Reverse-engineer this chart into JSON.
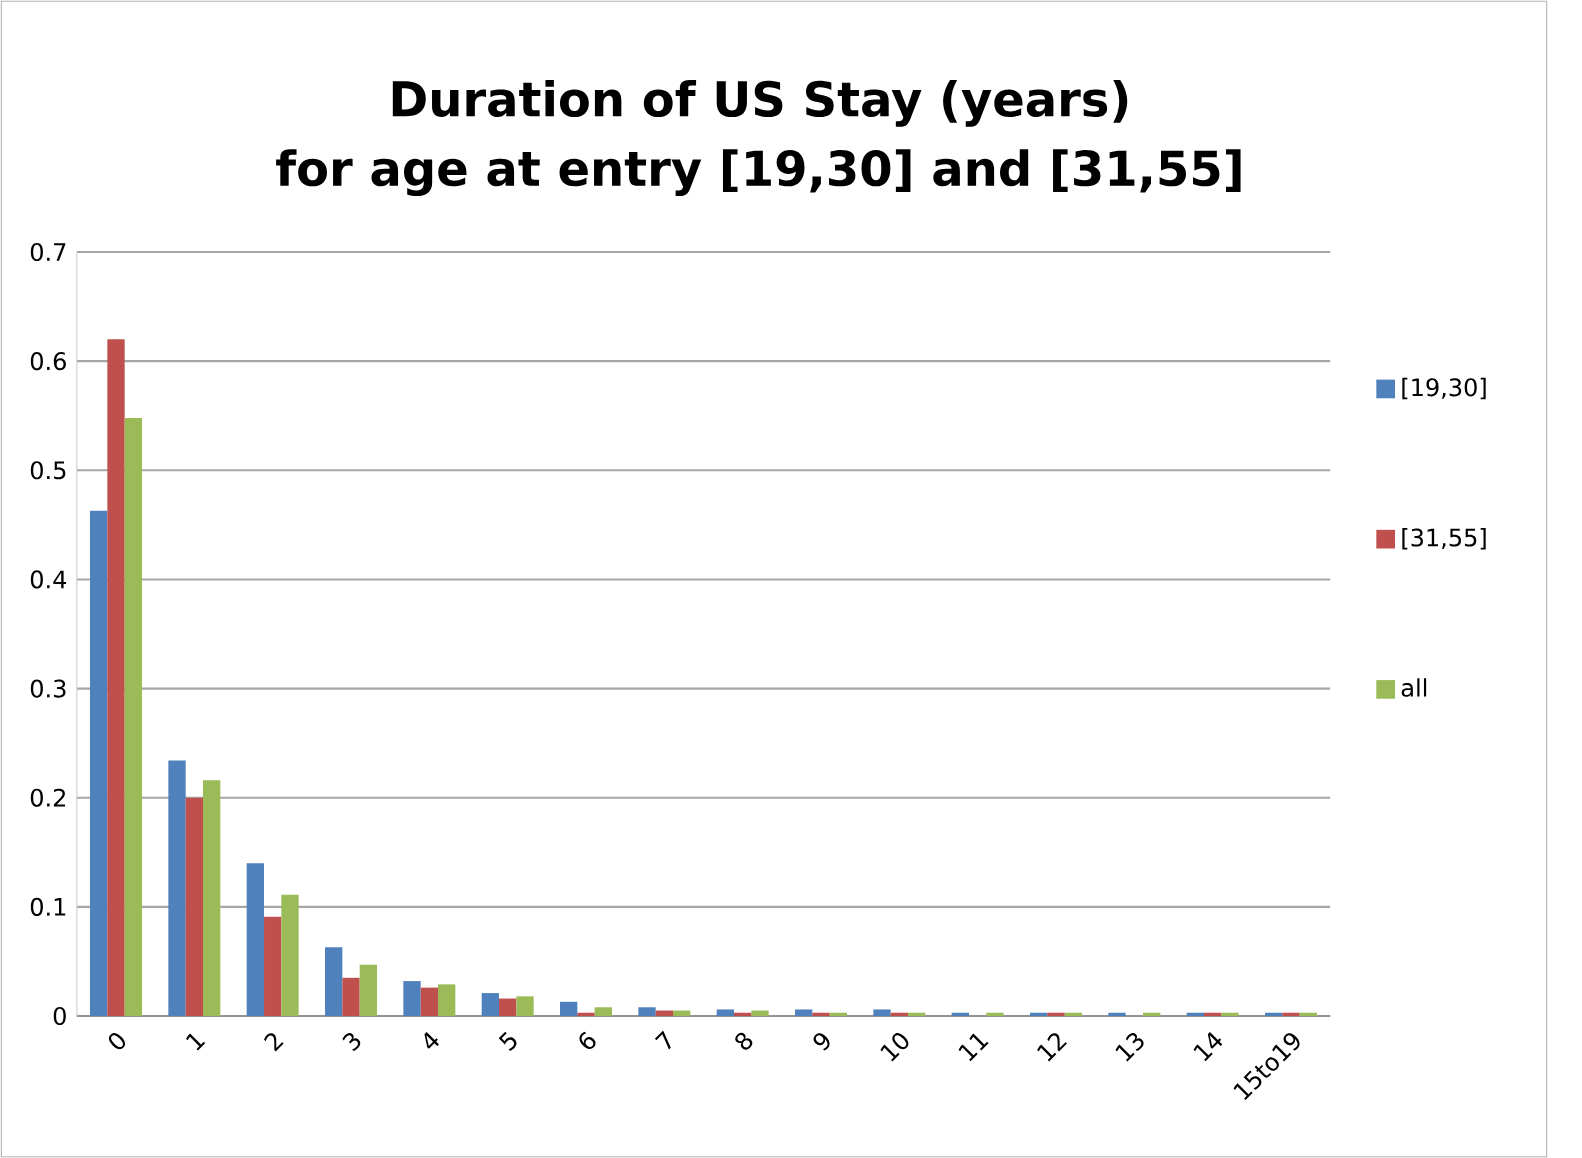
{
  "chart_data": {
    "type": "bar",
    "title": "Duration of US Stay (years)\nfor age at entry [19,30] and [31,55]",
    "categories": [
      "0",
      "1",
      "2",
      "3",
      "4",
      "5",
      "6",
      "7",
      "8",
      "9",
      "10",
      "11",
      "12",
      "13",
      "14",
      "15to19"
    ],
    "series": [
      {
        "name": "[19,30]",
        "color": "#4f81bd",
        "values": [
          0.463,
          0.234,
          0.14,
          0.063,
          0.032,
          0.021,
          0.013,
          0.008,
          0.006,
          0.006,
          0.006,
          0.003,
          0.003,
          0.003,
          0.003,
          0.003
        ]
      },
      {
        "name": "[31,55]",
        "color": "#c0504d",
        "values": [
          0.62,
          0.2,
          0.091,
          0.035,
          0.026,
          0.016,
          0.003,
          0.005,
          0.003,
          0.003,
          0.003,
          0,
          0.003,
          0,
          0.003,
          0.003
        ]
      },
      {
        "name": "all",
        "color": "#9bbb59",
        "values": [
          0.548,
          0.216,
          0.111,
          0.047,
          0.029,
          0.018,
          0.008,
          0.005,
          0.005,
          0.003,
          0.003,
          0.003,
          0.003,
          0.003,
          0.003,
          0.003
        ]
      }
    ],
    "ylim": [
      0,
      0.7
    ],
    "yticks": [
      0,
      0.1,
      0.2,
      0.3,
      0.4,
      0.5,
      0.6,
      0.7
    ],
    "grid": "y",
    "legend": "right"
  }
}
